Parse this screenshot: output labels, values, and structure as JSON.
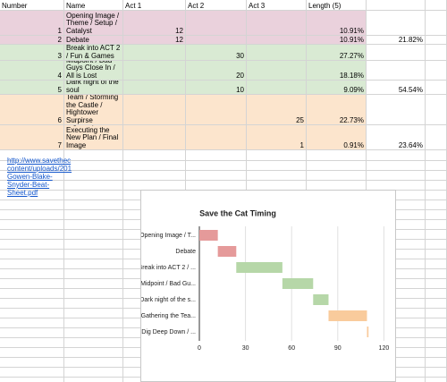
{
  "sheet": {
    "headers": [
      "Number",
      "Name",
      "Act 1",
      "Act 2",
      "Act 3",
      "Length (5)"
    ],
    "rows": [
      {
        "color": "#ead1dc",
        "cells": [
          1,
          "Opening Image / Theme / Setup / Catalyst",
          12,
          null,
          null,
          "10.91%",
          null
        ]
      },
      {
        "color": "#ead1dc",
        "cells": [
          2,
          "Debate",
          12,
          null,
          null,
          "10.91%",
          "21.82%"
        ]
      },
      {
        "color": "#d9ead3",
        "cells": [
          3,
          "Break into ACT 2 / Fun & Games",
          null,
          30,
          null,
          "27.27%",
          null
        ]
      },
      {
        "color": "#d9ead3",
        "cells": [
          4,
          "Midpoint / Bad Guys Close In / All is Lost",
          null,
          20,
          null,
          "18.18%",
          null
        ]
      },
      {
        "color": "#d9ead3",
        "cells": [
          5,
          "Dark night of the soul",
          null,
          10,
          null,
          "9.09%",
          "54.54%"
        ]
      },
      {
        "color": "#fce5cd",
        "cells": [
          6,
          "Gathering the Team / Storming the Castle / Hightower Surpirse",
          null,
          null,
          25,
          "22.73%",
          null
        ]
      },
      {
        "color": "#fce5cd",
        "cells": [
          7,
          "Dig Deep Down / Executing the New Plan / Final Image",
          null,
          null,
          1,
          "0.91%",
          "23.64%"
        ]
      }
    ],
    "link": [
      "http://www.savethec",
      "content/uploads/201",
      "Gowen-Blake-",
      "Snyder-Beat-",
      "Sheet.pdf"
    ]
  },
  "chart_data": {
    "type": "gantt",
    "title": "Save the Cat Timing",
    "categories": [
      "Opening Image / T...",
      "Debate",
      "Break into ACT 2 / ...",
      "Midpoint / Bad Gu...",
      "Dark night of the s...",
      "Gathering the Tea...",
      "Dig Deep Down / ..."
    ],
    "starts": [
      0,
      12,
      24,
      54,
      74,
      84,
      109
    ],
    "values": [
      12,
      12,
      30,
      20,
      10,
      25,
      1
    ],
    "colors": [
      "#e59a9a",
      "#e59a9a",
      "#b6d7a8",
      "#b6d7a8",
      "#b6d7a8",
      "#f9cb9c",
      "#f9cb9c"
    ],
    "xlim": [
      0,
      125
    ],
    "xticks": [
      0,
      30,
      60,
      90,
      120
    ],
    "grid": true
  }
}
